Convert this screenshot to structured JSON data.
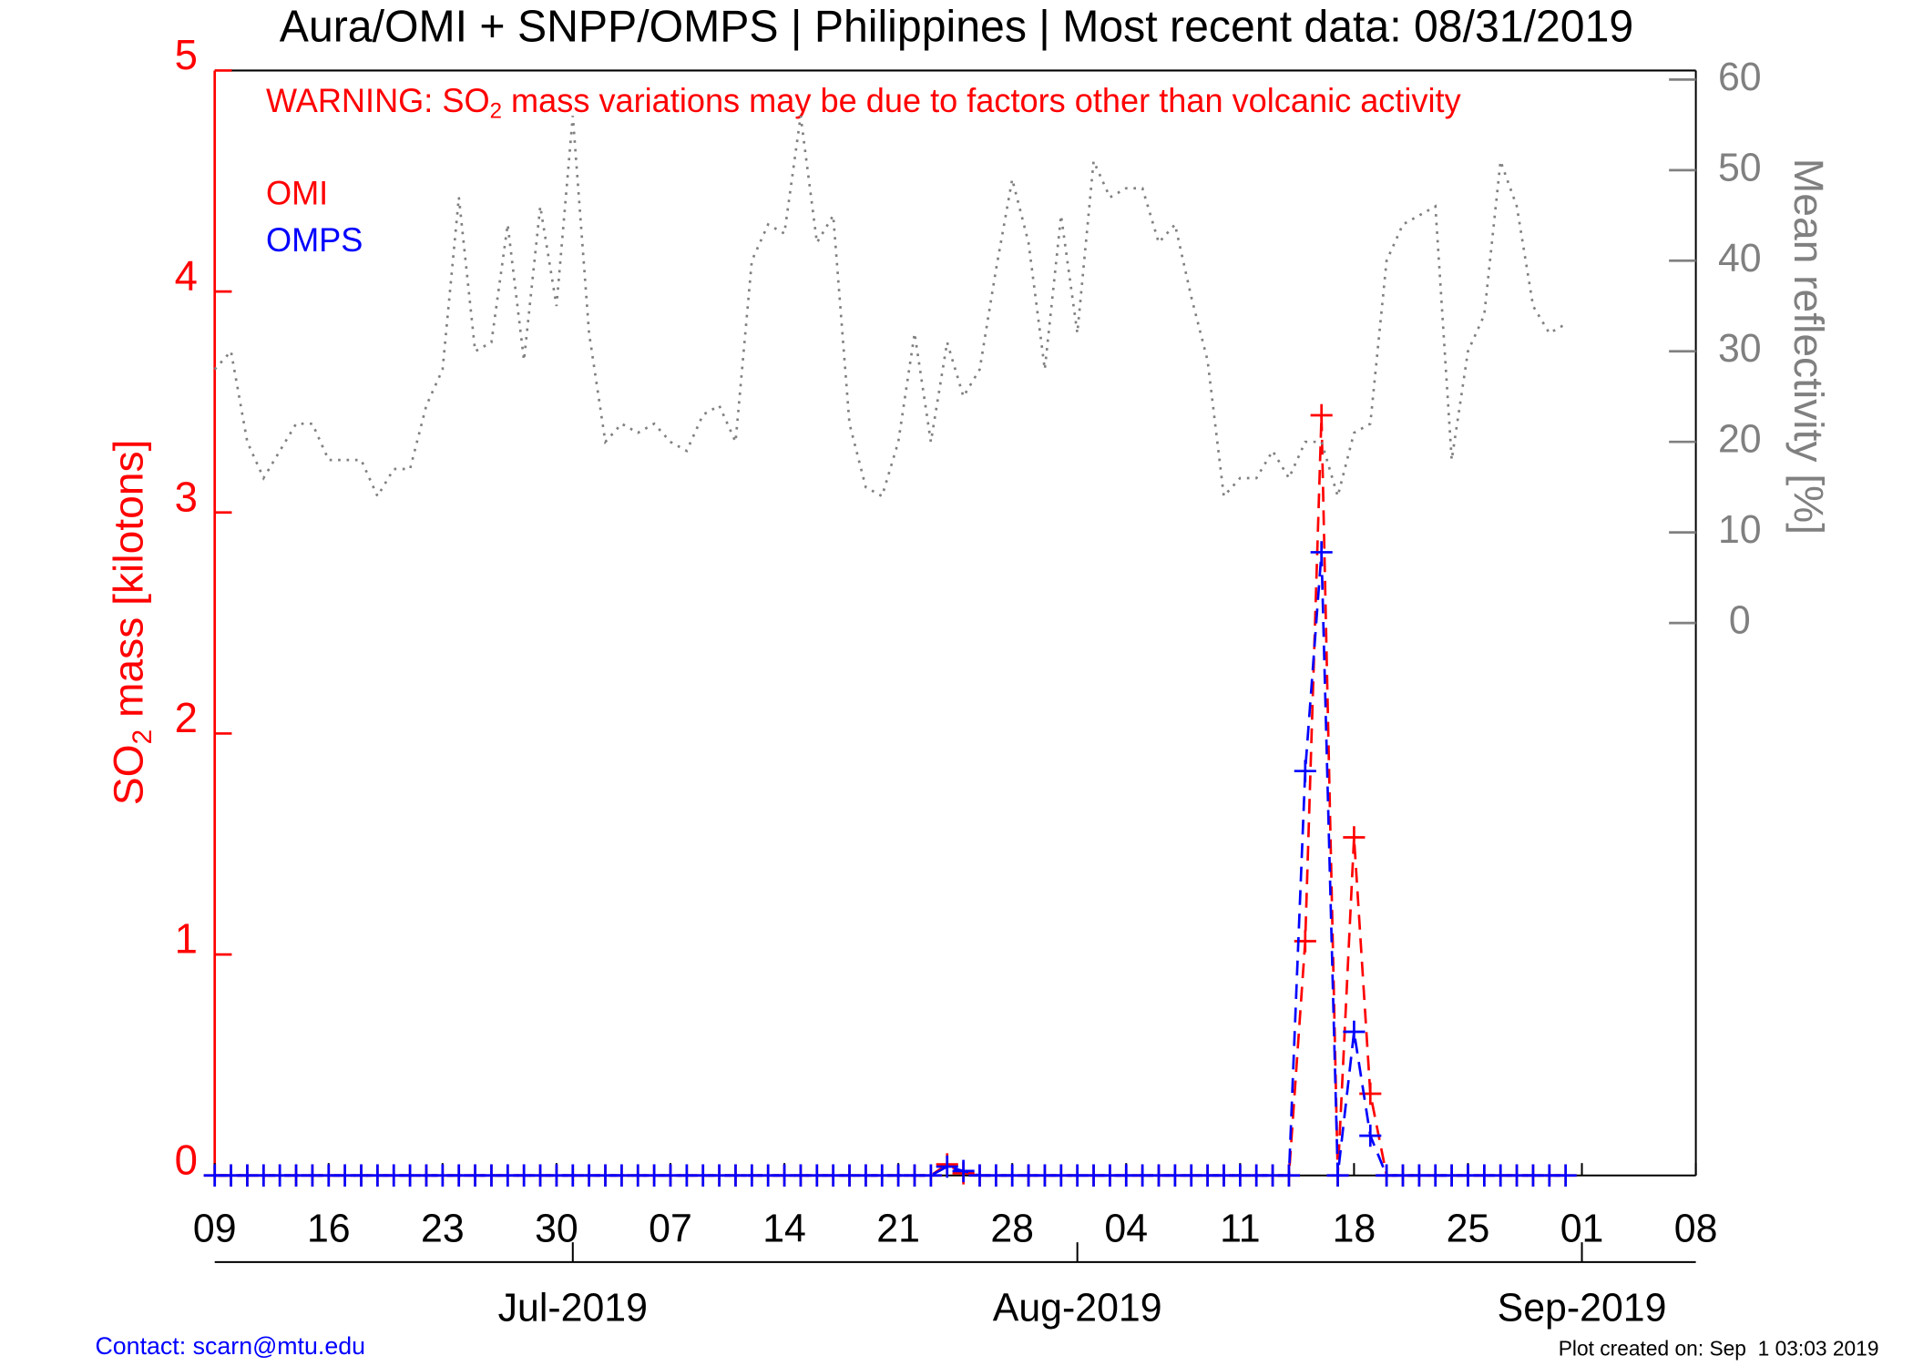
{
  "chart_data": {
    "type": "line",
    "title": "Aura/OMI + SNPP/OMPS | Philippines | Most recent data: 08/31/2019",
    "warning": {
      "prefix": "WARNING: SO",
      "subscript": "2",
      "suffix": " mass variations may be due to factors other than volcanic activity"
    },
    "ylabel": {
      "prefix": "SO",
      "subscript": "2",
      "suffix": " mass [kilotons]"
    },
    "y2label": "Mean reflectivity [%]",
    "footer_left": "Contact: scarn@mtu.edu",
    "footer_right": "Plot created on: Sep  1 03:03 2019",
    "x": [
      "2019-06-09",
      "2019-06-10",
      "2019-06-11",
      "2019-06-12",
      "2019-06-13",
      "2019-06-14",
      "2019-06-15",
      "2019-06-16",
      "2019-06-17",
      "2019-06-18",
      "2019-06-19",
      "2019-06-20",
      "2019-06-21",
      "2019-06-22",
      "2019-06-23",
      "2019-06-24",
      "2019-06-25",
      "2019-06-26",
      "2019-06-27",
      "2019-06-28",
      "2019-06-29",
      "2019-06-30",
      "2019-07-01",
      "2019-07-02",
      "2019-07-03",
      "2019-07-04",
      "2019-07-05",
      "2019-07-06",
      "2019-07-07",
      "2019-07-08",
      "2019-07-09",
      "2019-07-10",
      "2019-07-11",
      "2019-07-12",
      "2019-07-13",
      "2019-07-14",
      "2019-07-15",
      "2019-07-16",
      "2019-07-17",
      "2019-07-18",
      "2019-07-19",
      "2019-07-20",
      "2019-07-21",
      "2019-07-22",
      "2019-07-23",
      "2019-07-24",
      "2019-07-25",
      "2019-07-26",
      "2019-07-27",
      "2019-07-28",
      "2019-07-29",
      "2019-07-30",
      "2019-07-31",
      "2019-08-01",
      "2019-08-02",
      "2019-08-03",
      "2019-08-04",
      "2019-08-05",
      "2019-08-06",
      "2019-08-07",
      "2019-08-08",
      "2019-08-09",
      "2019-08-10",
      "2019-08-11",
      "2019-08-12",
      "2019-08-13",
      "2019-08-14",
      "2019-08-15",
      "2019-08-16",
      "2019-08-17",
      "2019-08-18",
      "2019-08-19",
      "2019-08-20",
      "2019-08-21",
      "2019-08-22",
      "2019-08-23",
      "2019-08-24",
      "2019-08-25",
      "2019-08-26",
      "2019-08-27",
      "2019-08-28",
      "2019-08-29",
      "2019-08-30",
      "2019-08-31"
    ],
    "series": [
      {
        "name": "OMI",
        "color": "#ff0000",
        "values": [
          0,
          0,
          0,
          0,
          0,
          0,
          0,
          0,
          0,
          0,
          0,
          0,
          0,
          0,
          0,
          0,
          0,
          0,
          0,
          0,
          0,
          0,
          0,
          0,
          0,
          0,
          0,
          0,
          0,
          0,
          0,
          0,
          0,
          0,
          0,
          0,
          0,
          0,
          0,
          0,
          0,
          0,
          0,
          0,
          0,
          0.05,
          0.01,
          0,
          0,
          0,
          0,
          0,
          0,
          0,
          0,
          0,
          0,
          0,
          0,
          0,
          0,
          0,
          0,
          0,
          0,
          0,
          0,
          1.06,
          3.44,
          0,
          1.53,
          0.37,
          0,
          0,
          0,
          0,
          0,
          0,
          0,
          0,
          0,
          0,
          0,
          0
        ]
      },
      {
        "name": "OMPS",
        "color": "#0000ff",
        "values": [
          0,
          0,
          0,
          0,
          0,
          0,
          0,
          0,
          0,
          0,
          0,
          0,
          0,
          0,
          0,
          0,
          0,
          0,
          0,
          0,
          0,
          0,
          0,
          0,
          0,
          0,
          0,
          0,
          0,
          0,
          0,
          0,
          0,
          0,
          0,
          0,
          0,
          0,
          0,
          0,
          0,
          0,
          0,
          0,
          0,
          0.04,
          0.02,
          0,
          0,
          0,
          0,
          0,
          0,
          0,
          0,
          0,
          0,
          0,
          0,
          0,
          0,
          0,
          0,
          0,
          0,
          0,
          0,
          1.83,
          2.82,
          0,
          0.65,
          0.18,
          0,
          0,
          0,
          0,
          0,
          0,
          0,
          0,
          0,
          0,
          0,
          0
        ]
      },
      {
        "name": "Mean reflectivity",
        "color": "#808080",
        "axis": "y2",
        "values": [
          28,
          30,
          20,
          16,
          19,
          22,
          22,
          18,
          18,
          18,
          14,
          17,
          17,
          24,
          28,
          47,
          30,
          31,
          44,
          29,
          46,
          35,
          56,
          32,
          20,
          22,
          21,
          22,
          20,
          19,
          23,
          24,
          20,
          40,
          44,
          43,
          56,
          42,
          45,
          22,
          15,
          14,
          20,
          32,
          20,
          31,
          25,
          28,
          39,
          49,
          42,
          28,
          45,
          32,
          51,
          47,
          48,
          48,
          42,
          44,
          36,
          29,
          14,
          16,
          16,
          19,
          16,
          20,
          20,
          14,
          21,
          22,
          40,
          44,
          45,
          46,
          18,
          30,
          34,
          51,
          46,
          35,
          32,
          33
        ]
      }
    ],
    "xlim": [
      "2019-06-09",
      "2019-09-08"
    ],
    "xticks": [
      {
        "value": "2019-06-09",
        "label": "09"
      },
      {
        "value": "2019-06-16",
        "label": "16"
      },
      {
        "value": "2019-06-23",
        "label": "23"
      },
      {
        "value": "2019-06-30",
        "label": "30"
      },
      {
        "value": "2019-07-07",
        "label": "07"
      },
      {
        "value": "2019-07-14",
        "label": "14"
      },
      {
        "value": "2019-07-21",
        "label": "21"
      },
      {
        "value": "2019-07-28",
        "label": "28"
      },
      {
        "value": "2019-08-04",
        "label": "04"
      },
      {
        "value": "2019-08-11",
        "label": "11"
      },
      {
        "value": "2019-08-18",
        "label": "18"
      },
      {
        "value": "2019-08-25",
        "label": "25"
      },
      {
        "value": "2019-09-01",
        "label": "01"
      },
      {
        "value": "2019-09-08",
        "label": "08"
      }
    ],
    "month_ticks": [
      {
        "value": "2019-07-01",
        "label": "Jul-2019"
      },
      {
        "value": "2019-08-01",
        "label": "Aug-2019"
      },
      {
        "value": "2019-09-01",
        "label": "Sep-2019"
      }
    ],
    "ylim": [
      0,
      5
    ],
    "yticks": [
      0,
      1,
      2,
      3,
      4,
      5
    ],
    "y2lim": [
      -61,
      61
    ],
    "y2ticks": [
      0,
      10,
      20,
      30,
      40,
      50,
      60
    ]
  }
}
